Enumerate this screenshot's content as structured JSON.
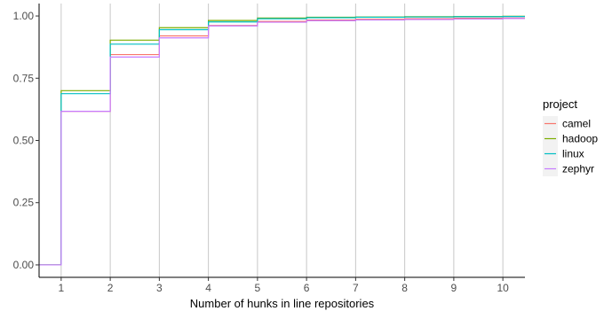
{
  "chart_data": {
    "type": "line",
    "step": true,
    "title": "",
    "xlabel": "Number of hunks in line repositories",
    "ylabel": "",
    "xlim": [
      0.55,
      10.45
    ],
    "ylim": [
      -0.05,
      1.05
    ],
    "x_ticks": [
      1,
      2,
      3,
      4,
      5,
      6,
      7,
      8,
      9,
      10
    ],
    "y_ticks": [
      0.0,
      0.25,
      0.5,
      0.75,
      1.0
    ],
    "x_tick_labels": [
      "1",
      "2",
      "3",
      "4",
      "5",
      "6",
      "7",
      "8",
      "9",
      "10"
    ],
    "y_tick_labels": [
      "0.00",
      "0.25",
      "0.50",
      "0.75",
      "1.00"
    ],
    "grid": {
      "vertical": true,
      "horizontal": false
    },
    "legend": {
      "title": "project",
      "position": "right"
    },
    "x": [
      0,
      1,
      2,
      3,
      4,
      5,
      6,
      7,
      8,
      9,
      10,
      11
    ],
    "series": [
      {
        "name": "camel",
        "color": "#F8766D",
        "values": [
          0,
          0.617,
          0.845,
          0.92,
          0.962,
          0.978,
          0.984,
          0.987,
          0.989,
          0.991,
          0.992,
          0.992
        ]
      },
      {
        "name": "hadoop",
        "color": "#7CAE00",
        "values": [
          0,
          0.7,
          0.903,
          0.953,
          0.982,
          0.992,
          0.995,
          0.996,
          0.997,
          0.998,
          0.999,
          0.999
        ]
      },
      {
        "name": "linux",
        "color": "#00BFC4",
        "values": [
          0,
          0.688,
          0.887,
          0.945,
          0.976,
          0.989,
          0.993,
          0.995,
          0.996,
          0.997,
          0.998,
          0.998
        ]
      },
      {
        "name": "zephyr",
        "color": "#C77CFF",
        "values": [
          0,
          0.617,
          0.835,
          0.912,
          0.96,
          0.975,
          0.981,
          0.984,
          0.986,
          0.988,
          0.99,
          0.99
        ]
      }
    ]
  }
}
